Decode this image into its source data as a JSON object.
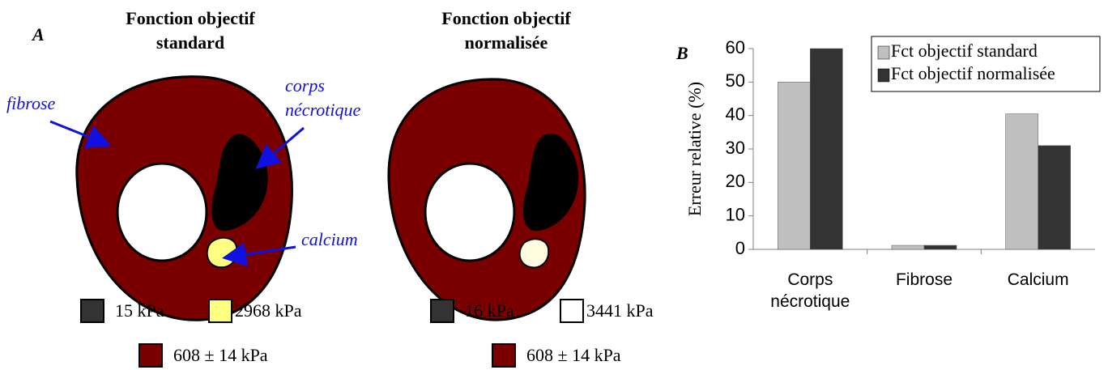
{
  "panel_a": {
    "label": "A",
    "standard": {
      "title": [
        "Fonction objectif",
        "standard"
      ],
      "legend": [
        {
          "label": "15 kPa",
          "color": "#333333"
        },
        {
          "label": "2968 kPa",
          "color": "#ffff80"
        },
        {
          "label": "608 ± 14 kPa",
          "color": "#7a0000"
        }
      ]
    },
    "normalized": {
      "title": [
        "Fonction objectif",
        "normalisée"
      ],
      "legend": [
        {
          "label": "16 kPa",
          "color": "#333333"
        },
        {
          "label": "3441 kPa",
          "color": "#ffffff"
        },
        {
          "label": "608 ± 14 kPa",
          "color": "#7a0000"
        }
      ]
    },
    "annotations": [
      "fibrose",
      "corps",
      "nécrotique",
      "calcium"
    ]
  },
  "chart_data": {
    "type": "bar",
    "panel_label": "B",
    "y_label": "Erreur relative (%)",
    "categories": [
      "Corps nécrotique",
      "Fibrose",
      "Calcium"
    ],
    "series": [
      {
        "name": "Fct objectif standard",
        "color": "#c0c0c0",
        "values": [
          50,
          1.2,
          40.5
        ]
      },
      {
        "name": "Fct objectif normalisée",
        "color": "#333333",
        "values": [
          60,
          1.2,
          31
        ]
      }
    ],
    "ylim": [
      0,
      60
    ],
    "yticks": [
      0,
      10,
      20,
      30,
      40,
      50,
      60
    ],
    "grid": false,
    "legend": "top-right"
  }
}
